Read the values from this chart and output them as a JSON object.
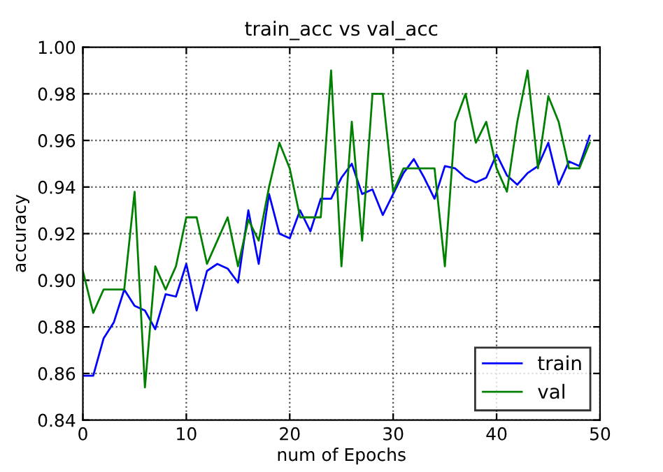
{
  "chart_data": {
    "type": "line",
    "title": "train_acc vs val_acc",
    "xlabel": "num of Epochs",
    "ylabel": "accuracy",
    "x": [
      0,
      1,
      2,
      3,
      4,
      5,
      6,
      7,
      8,
      9,
      10,
      11,
      12,
      13,
      14,
      15,
      16,
      17,
      18,
      19,
      20,
      21,
      22,
      23,
      24,
      25,
      26,
      27,
      28,
      29,
      30,
      31,
      32,
      33,
      34,
      35,
      36,
      37,
      38,
      39,
      40,
      41,
      42,
      43,
      44,
      45,
      46,
      47,
      48,
      49
    ],
    "series": [
      {
        "name": "train",
        "color": "#0000ff",
        "values": [
          0.859,
          0.859,
          0.875,
          0.882,
          0.896,
          0.889,
          0.887,
          0.879,
          0.894,
          0.893,
          0.907,
          0.887,
          0.904,
          0.907,
          0.905,
          0.899,
          0.93,
          0.907,
          0.937,
          0.92,
          0.918,
          0.93,
          0.921,
          0.935,
          0.935,
          0.944,
          0.95,
          0.937,
          0.939,
          0.928,
          0.937,
          0.946,
          0.952,
          0.944,
          0.935,
          0.949,
          0.948,
          0.944,
          0.942,
          0.944,
          0.954,
          0.945,
          0.941,
          0.946,
          0.949,
          0.959,
          0.941,
          0.951,
          0.949,
          0.962
        ]
      },
      {
        "name": "val",
        "color": "#008000",
        "values": [
          0.904,
          0.886,
          0.896,
          0.896,
          0.896,
          0.938,
          0.854,
          0.906,
          0.896,
          0.906,
          0.927,
          0.927,
          0.907,
          0.917,
          0.927,
          0.906,
          0.926,
          0.917,
          0.94,
          0.959,
          0.948,
          0.927,
          0.927,
          0.927,
          0.99,
          0.906,
          0.968,
          0.917,
          0.98,
          0.98,
          0.938,
          0.948,
          0.948,
          0.948,
          0.948,
          0.906,
          0.968,
          0.98,
          0.959,
          0.968,
          0.948,
          0.938,
          0.968,
          0.99,
          0.948,
          0.979,
          0.968,
          0.948,
          0.948,
          0.959
        ]
      }
    ],
    "xlim": [
      0,
      50
    ],
    "xticks": [
      0,
      10,
      20,
      30,
      40,
      50
    ],
    "ylim": [
      0.84,
      1.0
    ],
    "yticks": [
      {
        "value": 0.84,
        "label": "0.84"
      },
      {
        "value": 0.86,
        "label": "0.86"
      },
      {
        "value": 0.88,
        "label": "0.88"
      },
      {
        "value": 0.9,
        "label": "0.90"
      },
      {
        "value": 0.92,
        "label": "0.92"
      },
      {
        "value": 0.94,
        "label": "0.94"
      },
      {
        "value": 0.96,
        "label": "0.96"
      },
      {
        "value": 0.98,
        "label": "0.98"
      },
      {
        "value": 1.0,
        "label": "1.00"
      }
    ],
    "grid": true,
    "legend": "lower right",
    "marker": "none",
    "line_style": "solid"
  }
}
